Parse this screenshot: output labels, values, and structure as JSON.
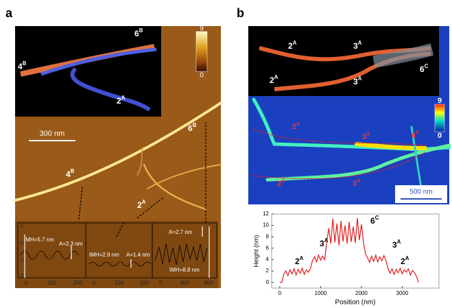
{
  "panel_a": {
    "label": "a",
    "colorbar": {
      "max": "9",
      "min": "0"
    },
    "scale_bar": "300 nm",
    "inset_labels": [
      {
        "base": "4",
        "sup": "B"
      },
      {
        "base": "6",
        "sup": "B"
      },
      {
        "base": "2",
        "sup": "A"
      }
    ],
    "image_labels": [
      {
        "base": "6",
        "sup": "B"
      },
      {
        "base": "4",
        "sup": "B"
      },
      {
        "base": "2",
        "sup": "A"
      }
    ],
    "profile_yticks": [
      "9",
      "6",
      "3",
      "0"
    ],
    "profiles": [
      {
        "imh": "IMH=5.7 nm",
        "amp": "A=2.3 nm",
        "xticks": [
          "0",
          "100",
          "200"
        ]
      },
      {
        "imh": "IMH=2.9 nm",
        "amp": "A=1.4 nm",
        "xticks": [
          "0",
          "100",
          "200"
        ]
      },
      {
        "imh": "IMH=8.8 nm",
        "amp": "A=2.7 nm",
        "xticks": [
          "0",
          "300",
          "600"
        ]
      }
    ]
  },
  "panel_b": {
    "label": "b",
    "inset_labels": [
      {
        "base": "2",
        "sup": "A"
      },
      {
        "base": "3",
        "sup": "A"
      },
      {
        "base": "2",
        "sup": "A"
      },
      {
        "base": "3",
        "sup": "A"
      },
      {
        "base": "6",
        "sup": "C"
      }
    ],
    "colorbar": {
      "max": "9",
      "min": "0"
    },
    "scale_bar": "500 nm",
    "image_labels": [
      {
        "base": "2",
        "sup": "A"
      },
      {
        "base": "3",
        "sup": "A"
      },
      {
        "base": "6",
        "sup": "C"
      },
      {
        "base": "2",
        "sup": "A"
      },
      {
        "base": "3",
        "sup": "A"
      }
    ]
  },
  "chart_data": {
    "type": "line",
    "xlabel": "Position (nm)",
    "ylabel": "Height (nm)",
    "x": [
      0,
      50,
      100,
      150,
      200,
      250,
      300,
      350,
      400,
      450,
      500,
      550,
      600,
      650,
      700,
      750,
      800,
      850,
      900,
      950,
      1000,
      1050,
      1100,
      1150,
      1200,
      1250,
      1300,
      1350,
      1400,
      1450,
      1500,
      1550,
      1600,
      1650,
      1700,
      1750,
      1800,
      1850,
      1900,
      1950,
      2000,
      2050,
      2100,
      2150,
      2200,
      2250,
      2300,
      2350,
      2400,
      2450,
      2500,
      2550,
      2600,
      2650,
      2700,
      2750,
      2800,
      2850,
      2900,
      2950,
      3000,
      3050,
      3100,
      3150,
      3200,
      3250,
      3300,
      3350,
      3400
    ],
    "series": [
      {
        "color": "#e31a1c",
        "values": [
          0,
          0,
          1.5,
          2,
          1.2,
          2.2,
          1.5,
          2.4,
          1.3,
          2.3,
          1.6,
          2.5,
          1.4,
          2.2,
          1.8,
          2.4,
          3.8,
          4.5,
          3.6,
          4.8,
          3.9,
          4.6,
          4.0,
          7.0,
          9.5,
          6.8,
          11.2,
          7.0,
          10.3,
          6.5,
          10.8,
          7.2,
          10.0,
          6.8,
          10.6,
          7.1,
          9.8,
          6.9,
          11.3,
          7.4,
          10.2,
          7.0,
          5.0,
          4.3,
          3.5,
          4.6,
          3.7,
          4.8,
          3.6,
          4.5,
          3.8,
          4.7,
          3.9,
          2.5,
          1.6,
          2.4,
          1.4,
          2.3,
          1.7,
          2.5,
          1.5,
          2.2,
          1.8,
          2.4,
          1.3,
          2.1,
          1.7,
          1.0,
          0
        ]
      }
    ],
    "xlim": [
      -200,
      3900
    ],
    "ylim": [
      -1,
      12
    ],
    "xticks": [
      0,
      1000,
      2000,
      3000
    ],
    "yticks": [
      0,
      2,
      4,
      6,
      8,
      10,
      12
    ],
    "annotations": [
      {
        "base": "2",
        "sup": "A"
      },
      {
        "base": "3",
        "sup": "A"
      },
      {
        "base": "6",
        "sup": "C"
      },
      {
        "base": "3",
        "sup": "A"
      },
      {
        "base": "2",
        "sup": "A"
      }
    ]
  }
}
